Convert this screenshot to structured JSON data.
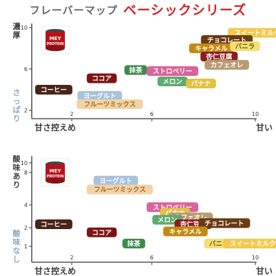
{
  "header": {
    "title": "フレーバーマップ",
    "series_name": "ベーシックシリーズ"
  },
  "colors": {
    "axis": "#555555",
    "tick_text": "#333333",
    "title_gray": "#666666",
    "title_red": "#d42128",
    "axis_text": "#3a3a3a",
    "axis_hint_top": "#7a4530",
    "axis_hint_bottom": "#8aa9c5"
  },
  "product_image": {
    "line1": "MEY",
    "line2": "PROTEIN"
  },
  "chart_data": [
    {
      "type": "scatter",
      "x_axis": {
        "low_label": "甘さ控えめ",
        "high_label": "甘い",
        "ticks": [
          "2",
          "6",
          "10"
        ],
        "range": [
          0,
          10
        ]
      },
      "y_axis": {
        "high_label": "濃厚",
        "low_label": "さっぱり",
        "ticks": [
          "10",
          "6",
          "2"
        ],
        "range": [
          1,
          10
        ]
      },
      "points": [
        {
          "label": "スイートミルク",
          "x": 10.1,
          "y": 9.5,
          "color": "#f3c94c",
          "text_color": "#ffffff"
        },
        {
          "label": "チョコレート",
          "x": 8.9,
          "y": 8.8,
          "color": "#6a3a12",
          "text_color": "#ffffff"
        },
        {
          "label": "キャラメル",
          "x": 8.3,
          "y": 8.0,
          "color": "#c38a0f",
          "text_color": "#ffffff"
        },
        {
          "label": "バニラ",
          "x": 9.6,
          "y": 8.2,
          "color": "#f3df72",
          "text_color": "#6b5a12"
        },
        {
          "label": "杏仁豆腐",
          "x": 8.6,
          "y": 7.2,
          "color": "#8c1d1d",
          "text_color": "#ffffff"
        },
        {
          "label": "カフェオレ",
          "x": 8.9,
          "y": 6.4,
          "color": "#b99a72",
          "text_color": "#ffffff"
        },
        {
          "label": "抹茶",
          "x": 5.2,
          "y": 5.9,
          "color": "#3e8a4e",
          "text_color": "#ffffff"
        },
        {
          "label": "ストロベリー",
          "x": 6.8,
          "y": 5.8,
          "color": "#d8639d",
          "text_color": "#ffffff"
        },
        {
          "label": "メロン",
          "x": 6.8,
          "y": 4.8,
          "color": "#5dab70",
          "text_color": "#ffffff"
        },
        {
          "label": "バナナ",
          "x": 7.9,
          "y": 4.6,
          "color": "#e3c242",
          "text_color": "#ffffff"
        },
        {
          "label": "ココア",
          "x": 3.5,
          "y": 5.1,
          "color": "#7d1414",
          "text_color": "#ffffff"
        },
        {
          "label": "コーヒー",
          "x": 1.1,
          "y": 4.0,
          "color": "#4a2418",
          "text_color": "#ffffff"
        },
        {
          "label": "ヨーグルト",
          "x": 3.4,
          "y": 3.4,
          "color": "#a6c2df",
          "text_color": "#ffffff"
        },
        {
          "label": "フルーツミックス",
          "x": 3.9,
          "y": 2.6,
          "color": "#f2d3a6",
          "text_color": "#a3651d"
        }
      ]
    },
    {
      "type": "scatter",
      "x_axis": {
        "low_label": "甘さ控えめ",
        "high_label": "甘い",
        "ticks": [
          "2",
          "6",
          "10"
        ],
        "range": [
          0,
          10
        ]
      },
      "y_axis": {
        "high_label": "酸味あり",
        "low_label": "酸味なし",
        "ticks": [
          "10",
          "8",
          "4",
          "2",
          "1"
        ],
        "range": [
          0.7,
          10
        ]
      },
      "points": [
        {
          "label": "ヨーグルト",
          "x": 4.2,
          "y": 7.0,
          "color": "#a6c2df",
          "text_color": "#ffffff"
        },
        {
          "label": "フルーツミックス",
          "x": 4.4,
          "y": 5.9,
          "color": "#f2d3a6",
          "text_color": "#a3651d"
        },
        {
          "label": "ストロベリー",
          "x": 6.8,
          "y": 3.8,
          "color": "#d8639d",
          "text_color": "#ffffff"
        },
        {
          "label": "バナナ",
          "x": 6.9,
          "y": 3.3,
          "color": "#e3c242",
          "text_color": "#ffffff"
        },
        {
          "label": "カフェオレ",
          "x": 7.5,
          "y": 2.9,
          "color": "#b99a72",
          "text_color": "#ffffff"
        },
        {
          "label": "メロン",
          "x": 6.6,
          "y": 2.7,
          "color": "#5dab70",
          "text_color": "#ffffff"
        },
        {
          "label": "杏仁豆腐",
          "x": 7.6,
          "y": 2.3,
          "color": "#8c1d1d",
          "text_color": "#ffffff"
        },
        {
          "label": "チョコレート",
          "x": 8.8,
          "y": 2.4,
          "color": "#6a3a12",
          "text_color": "#ffffff"
        },
        {
          "label": "キャラメル",
          "x": 7.3,
          "y": 1.8,
          "color": "#c38a0f",
          "text_color": "#ffffff"
        },
        {
          "label": "コーヒー",
          "x": 1.1,
          "y": 2.3,
          "color": "#4a2418",
          "text_color": "#ffffff"
        },
        {
          "label": "ココア",
          "x": 3.5,
          "y": 1.75,
          "color": "#7d1414",
          "text_color": "#ffffff"
        },
        {
          "label": "抹茶",
          "x": 5.1,
          "y": 1.15,
          "color": "#3e8a4e",
          "text_color": "#ffffff"
        },
        {
          "label": "バニラ",
          "x": 8.6,
          "y": 1.15,
          "color": "#f3df72",
          "text_color": "#6b5a12"
        },
        {
          "label": "スイートミルク",
          "x": 9.9,
          "y": 1.15,
          "color": "#f3c94c",
          "text_color": "#ffffff"
        }
      ]
    }
  ]
}
